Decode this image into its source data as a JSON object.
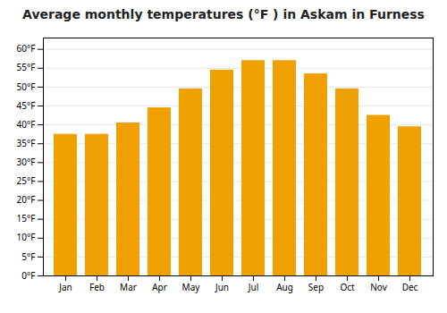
{
  "chart_data": {
    "type": "bar",
    "title": "Average monthly temperatures (°F ) in Askam in Furness",
    "categories": [
      "Jan",
      "Feb",
      "Mar",
      "Apr",
      "May",
      "Jun",
      "Jul",
      "Aug",
      "Sep",
      "Oct",
      "Nov",
      "Dec"
    ],
    "values": [
      37.5,
      37.5,
      40.5,
      44.5,
      49.5,
      54.5,
      57.0,
      57.0,
      53.5,
      49.5,
      42.5,
      39.5
    ],
    "color": "#F0A000",
    "ylim": [
      0,
      63
    ],
    "yticks": [
      {
        "value": 0,
        "label": "0°F"
      },
      {
        "value": 5,
        "label": "5°F"
      },
      {
        "value": 10,
        "label": "10°F"
      },
      {
        "value": 15,
        "label": "15°F"
      },
      {
        "value": 20,
        "label": "20°F"
      },
      {
        "value": 25,
        "label": "25°F"
      },
      {
        "value": 30,
        "label": "30°F"
      },
      {
        "value": 35,
        "label": "35°F"
      },
      {
        "value": 40,
        "label": "40°F"
      },
      {
        "value": 45,
        "label": "45°F"
      },
      {
        "value": 50,
        "label": "50°F"
      },
      {
        "value": 55,
        "label": "55°F"
      },
      {
        "value": 60,
        "label": "60°F"
      }
    ],
    "grid": true
  }
}
